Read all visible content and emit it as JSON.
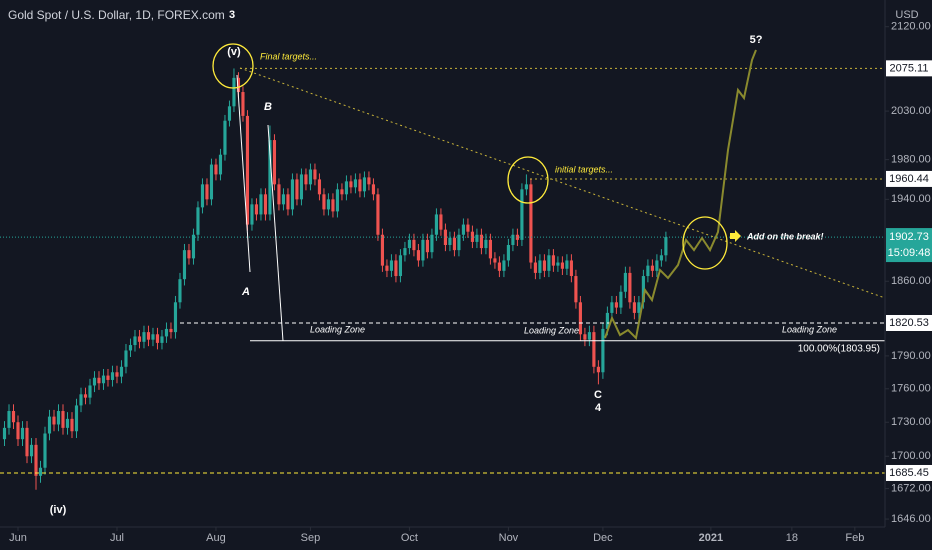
{
  "chart_data": {
    "type": "candlestick",
    "title": "Gold Spot / U.S. Dollar, 1D, FOREX.com",
    "currency": "USD",
    "up_color": "#26a69a",
    "down_color": "#ef5350",
    "log_scale": true,
    "grid": false,
    "x": [
      0,
      1,
      2,
      3,
      4,
      5,
      6,
      7,
      8,
      9,
      10,
      11,
      12,
      13,
      14,
      15,
      16,
      17,
      18,
      19,
      20,
      21,
      22,
      23,
      24,
      25,
      26,
      27,
      28,
      29,
      30,
      31,
      32,
      33,
      34,
      35,
      36,
      37,
      38,
      39,
      40,
      41,
      42,
      43,
      44,
      45,
      46,
      47,
      48,
      49,
      50,
      51,
      52,
      53,
      54,
      55,
      56,
      57,
      58,
      59,
      60,
      61,
      62,
      63,
      64,
      65,
      66,
      67,
      68,
      69,
      70,
      71,
      72,
      73,
      74,
      75,
      76,
      77,
      78,
      79,
      80,
      81,
      82,
      83,
      84,
      85,
      86,
      87,
      88,
      89,
      90,
      91,
      92,
      93,
      94,
      95,
      96,
      97,
      98,
      99,
      100,
      101,
      102,
      103,
      104,
      105,
      106,
      107,
      108,
      109,
      110,
      111,
      112,
      113,
      114,
      115,
      116,
      117,
      118,
      119,
      120,
      121,
      122,
      123,
      124,
      125,
      126,
      127,
      128,
      129,
      130,
      131,
      132,
      133,
      134,
      135,
      136,
      137,
      138,
      139,
      140,
      141,
      142,
      143,
      144,
      145,
      146,
      147
    ],
    "open": [
      1715,
      1725,
      1740,
      1730,
      1715,
      1725,
      1700,
      1710,
      1683,
      1690,
      1720,
      1735,
      1728,
      1740,
      1725,
      1733,
      1722,
      1745,
      1755,
      1752,
      1763,
      1770,
      1765,
      1772,
      1768,
      1775,
      1771,
      1780,
      1795,
      1800,
      1808,
      1803,
      1812,
      1805,
      1810,
      1802,
      1808,
      1815,
      1812,
      1840,
      1862,
      1890,
      1882,
      1905,
      1932,
      1955,
      1940,
      1975,
      1965,
      1985,
      2020,
      2035,
      2065,
      2050,
      2025,
      1915,
      1935,
      1925,
      1945,
      1925,
      2000,
      1955,
      1935,
      1945,
      1930,
      1960,
      1940,
      1965,
      1955,
      1970,
      1960,
      1945,
      1930,
      1940,
      1928,
      1950,
      1945,
      1958,
      1952,
      1960,
      1948,
      1962,
      1955,
      1945,
      1905,
      1875,
      1870,
      1880,
      1865,
      1885,
      1892,
      1900,
      1890,
      1880,
      1900,
      1888,
      1905,
      1925,
      1910,
      1895,
      1902,
      1890,
      1905,
      1915,
      1908,
      1898,
      1905,
      1892,
      1900,
      1882,
      1878,
      1870,
      1880,
      1895,
      1905,
      1900,
      1950,
      1955,
      1878,
      1868,
      1880,
      1870,
      1885,
      1875,
      1878,
      1872,
      1880,
      1865,
      1840,
      1810,
      1805,
      1812,
      1780,
      1775,
      1815,
      1830,
      1840,
      1835,
      1850,
      1868,
      1840,
      1830,
      1840,
      1865,
      1875,
      1870,
      1880,
      1885
    ],
    "high": [
      1731,
      1746,
      1746,
      1736,
      1731,
      1731,
      1716,
      1716,
      1696,
      1726,
      1741,
      1741,
      1746,
      1746,
      1739,
      1739,
      1751,
      1761,
      1761,
      1769,
      1776,
      1776,
      1778,
      1778,
      1781,
      1781,
      1786,
      1801,
      1806,
      1814,
      1814,
      1818,
      1818,
      1816,
      1816,
      1814,
      1821,
      1821,
      1846,
      1868,
      1896,
      1896,
      1911,
      1938,
      1961,
      1961,
      1981,
      1981,
      1991,
      2026,
      2041,
      2075,
      2071,
      2056,
      2031,
      1941,
      1941,
      1951,
      1951,
      2015,
      2006,
      1961,
      1951,
      1951,
      1966,
      1966,
      1971,
      1971,
      1976,
      1976,
      1966,
      1951,
      1946,
      1946,
      1956,
      1956,
      1964,
      1964,
      1966,
      1966,
      1968,
      1968,
      1961,
      1951,
      1911,
      1881,
      1886,
      1886,
      1891,
      1898,
      1906,
      1906,
      1896,
      1906,
      1906,
      1911,
      1931,
      1931,
      1916,
      1908,
      1908,
      1911,
      1921,
      1921,
      1914,
      1911,
      1911,
      1906,
      1906,
      1888,
      1884,
      1886,
      1901,
      1911,
      1911,
      1956,
      1965,
      1961,
      1884,
      1886,
      1886,
      1891,
      1891,
      1884,
      1884,
      1886,
      1886,
      1871,
      1846,
      1816,
      1818,
      1818,
      1786,
      1821,
      1836,
      1846,
      1846,
      1856,
      1874,
      1874,
      1846,
      1846,
      1871,
      1881,
      1881,
      1886,
      1891,
      1908
    ],
    "low": [
      1709,
      1719,
      1724,
      1709,
      1709,
      1694,
      1694,
      1671,
      1677,
      1684,
      1714,
      1722,
      1722,
      1719,
      1719,
      1716,
      1716,
      1739,
      1746,
      1746,
      1757,
      1759,
      1759,
      1762,
      1762,
      1765,
      1765,
      1774,
      1789,
      1794,
      1797,
      1797,
      1799,
      1799,
      1796,
      1796,
      1802,
      1806,
      1806,
      1834,
      1856,
      1876,
      1876,
      1899,
      1926,
      1934,
      1934,
      1959,
      1959,
      1979,
      2014,
      2029,
      2044,
      2019,
      1909,
      1909,
      1919,
      1919,
      1919,
      1919,
      1949,
      1929,
      1929,
      1924,
      1924,
      1934,
      1934,
      1949,
      1949,
      1954,
      1939,
      1924,
      1924,
      1922,
      1922,
      1939,
      1939,
      1946,
      1946,
      1942,
      1942,
      1949,
      1939,
      1899,
      1869,
      1864,
      1864,
      1859,
      1859,
      1879,
      1886,
      1884,
      1874,
      1874,
      1882,
      1882,
      1899,
      1904,
      1889,
      1889,
      1884,
      1884,
      1899,
      1902,
      1892,
      1892,
      1886,
      1886,
      1876,
      1872,
      1864,
      1864,
      1874,
      1889,
      1894,
      1894,
      1944,
      1872,
      1862,
      1862,
      1864,
      1864,
      1869,
      1869,
      1866,
      1866,
      1859,
      1834,
      1804,
      1799,
      1799,
      1774,
      1764,
      1769,
      1809,
      1824,
      1829,
      1829,
      1844,
      1834,
      1824,
      1824,
      1834,
      1859,
      1864,
      1864,
      1874,
      1879
    ],
    "close": [
      1725,
      1740,
      1730,
      1715,
      1725,
      1700,
      1710,
      1683,
      1690,
      1720,
      1735,
      1728,
      1740,
      1725,
      1733,
      1722,
      1745,
      1755,
      1752,
      1763,
      1770,
      1765,
      1772,
      1768,
      1775,
      1771,
      1780,
      1795,
      1800,
      1808,
      1803,
      1812,
      1805,
      1810,
      1802,
      1808,
      1815,
      1812,
      1840,
      1862,
      1890,
      1882,
      1905,
      1932,
      1955,
      1940,
      1975,
      1965,
      1985,
      2020,
      2035,
      2065,
      2050,
      2025,
      1915,
      1935,
      1925,
      1945,
      1925,
      2000,
      1955,
      1935,
      1945,
      1930,
      1960,
      1940,
      1965,
      1955,
      1970,
      1960,
      1945,
      1930,
      1940,
      1928,
      1950,
      1945,
      1958,
      1952,
      1960,
      1948,
      1962,
      1955,
      1945,
      1905,
      1875,
      1870,
      1880,
      1865,
      1885,
      1892,
      1900,
      1890,
      1880,
      1900,
      1888,
      1905,
      1925,
      1910,
      1895,
      1902,
      1890,
      1905,
      1915,
      1908,
      1898,
      1905,
      1892,
      1900,
      1882,
      1878,
      1870,
      1880,
      1895,
      1905,
      1900,
      1950,
      1955,
      1878,
      1868,
      1880,
      1870,
      1885,
      1875,
      1878,
      1872,
      1880,
      1865,
      1840,
      1810,
      1805,
      1812,
      1780,
      1775,
      1815,
      1830,
      1840,
      1835,
      1850,
      1868,
      1840,
      1830,
      1840,
      1865,
      1875,
      1870,
      1880,
      1885,
      1902.73
    ],
    "xlim": [
      -1,
      195.7
    ],
    "xticks": [
      {
        "value": 3,
        "label": "Jun"
      },
      {
        "value": 25,
        "label": "Jul"
      },
      {
        "value": 47,
        "label": "Aug"
      },
      {
        "value": 68,
        "label": "Sep"
      },
      {
        "value": 90,
        "label": "Oct"
      },
      {
        "value": 112,
        "label": "Nov"
      },
      {
        "value": 133,
        "label": "Dec"
      },
      {
        "value": 157,
        "label": "2021"
      },
      {
        "value": 175,
        "label": "18"
      },
      {
        "value": 189,
        "label": "Feb"
      }
    ],
    "ylim": [
      1639.3,
      2149.3
    ],
    "yticks": [
      {
        "value": 2120,
        "label": "2120.00"
      },
      {
        "value": 2030,
        "label": "2030.00"
      },
      {
        "value": 1980,
        "label": "1980.00"
      },
      {
        "value": 1940,
        "label": "1940.00"
      },
      {
        "value": 1860,
        "label": "1860.00"
      },
      {
        "value": 1790,
        "label": "1790.00"
      },
      {
        "value": 1760,
        "label": "1760.00"
      },
      {
        "value": 1730,
        "label": "1730.00"
      },
      {
        "value": 1700,
        "label": "1700.00"
      },
      {
        "value": 1672,
        "label": "1672.00"
      },
      {
        "value": 1646,
        "label": "1646.00"
      }
    ],
    "price_lines": [
      2075.11,
      1960.44,
      1820.53,
      1685.45
    ],
    "fib_level": {
      "value": 1803.95,
      "label": "100.00%(1803.95)"
    },
    "countdown": "15:09:48",
    "waves": [
      "3",
      "(v)",
      "B",
      "A",
      "C",
      "4",
      "5?",
      "(iv)"
    ],
    "notes": [
      "Final targets...",
      "initial targets...",
      "Add on the break!"
    ],
    "zones": [
      "Loading Zone",
      "Loading Zone",
      "Loading Zone"
    ]
  }
}
